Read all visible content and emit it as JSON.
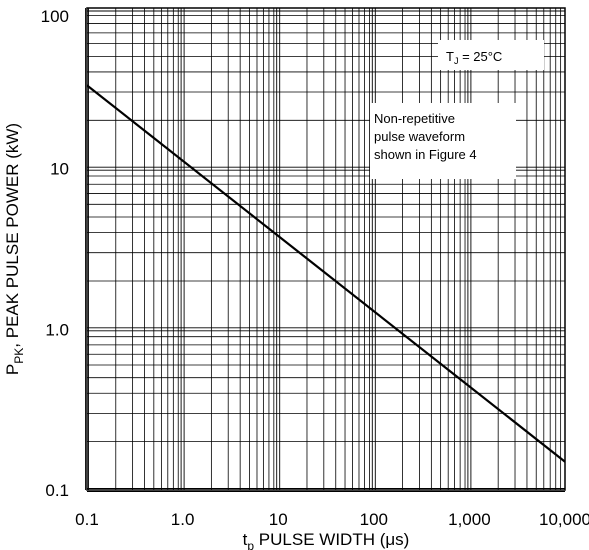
{
  "chart_data": {
    "type": "line",
    "title": "",
    "xlabel": {
      "main": "t",
      "sub": "p",
      "rest": " PULSE WIDTH (",
      "mu": "μ",
      "unit": "s)"
    },
    "ylabel": {
      "main": "P",
      "sub": "PK",
      "rest": ", PEAK PULSE POWER (kW)"
    },
    "x_scale": "log",
    "y_scale": "log",
    "xlim": [
      0.1,
      10000
    ],
    "ylim": [
      0.1,
      100
    ],
    "x_ticks": [
      0.1,
      1,
      10,
      100,
      1000,
      10000
    ],
    "x_tick_labels": [
      "0.1",
      "1.0",
      "10",
      "100",
      "1,000",
      "10,000"
    ],
    "y_ticks": [
      0.1,
      1,
      10,
      100
    ],
    "y_tick_labels": [
      "0.1",
      "1.0",
      "10",
      "100"
    ],
    "grid": true,
    "series": [
      {
        "x": [
          0.1,
          10000
        ],
        "y": [
          33,
          0.15
        ]
      }
    ],
    "annotations": {
      "temperature": {
        "t": "T",
        "sub": "J",
        "rest": " = 25°C"
      },
      "waveform": [
        "Non-repetitive",
        "pulse waveform",
        "shown in Figure 4"
      ]
    },
    "colors": {
      "line": "#000000",
      "grid": "#000000"
    }
  }
}
